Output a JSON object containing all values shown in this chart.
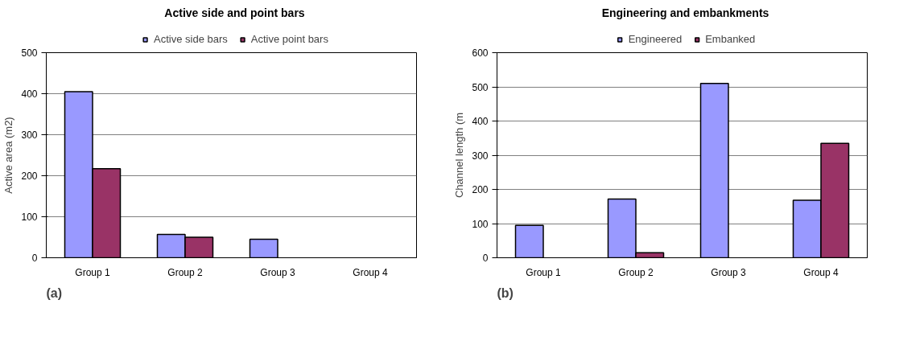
{
  "chart_data": [
    {
      "type": "bar",
      "title": "Active side and point bars",
      "ylabel": "Active area (m2)",
      "categories": [
        "Group 1",
        "Group 2",
        "Group 3",
        "Group 4"
      ],
      "series": [
        {
          "name": "Active side bars",
          "color": "#9999ff",
          "values": [
            405,
            57,
            45,
            null
          ]
        },
        {
          "name": "Active point bars",
          "color": "#993366",
          "values": [
            217,
            50,
            null,
            null
          ]
        }
      ],
      "ylim": [
        0,
        500
      ],
      "yticks": [
        0,
        100,
        200,
        300,
        400,
        500
      ],
      "grid": "y",
      "legend": "top",
      "annotations": [
        "(a)"
      ]
    },
    {
      "type": "bar",
      "title": "Engineering and embankments",
      "ylabel": "Channel length (m",
      "categories": [
        "Group 1",
        "Group 2",
        "Group 3",
        "Group 4"
      ],
      "series": [
        {
          "name": "Engineered",
          "color": "#9999ff",
          "values": [
            95,
            172,
            510,
            168
          ]
        },
        {
          "name": "Embanked",
          "color": "#993366",
          "values": [
            null,
            15,
            null,
            335
          ]
        }
      ],
      "ylim": [
        0,
        600
      ],
      "yticks": [
        0,
        100,
        200,
        300,
        400,
        500,
        600
      ],
      "grid": "y",
      "legend": "top",
      "annotations": [
        "(b)"
      ]
    }
  ]
}
